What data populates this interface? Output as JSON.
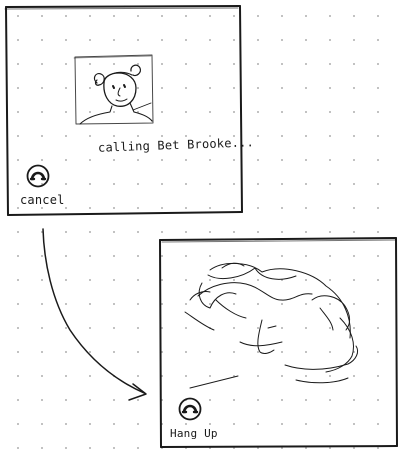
{
  "screen_calling": {
    "status_text": "calling Bet Brooke...",
    "action_label": "cancel",
    "action_icon": "hang-up-icon",
    "avatar_icon": "caller-avatar-sketch"
  },
  "screen_in_call": {
    "action_label": "Hang Up",
    "action_icon": "hang-up-icon",
    "video_icon": "remote-video-face-sketch"
  },
  "flow": {
    "icon": "transition-arrow"
  },
  "colors": {
    "ink": "#1a1a1a",
    "paper": "#ffffff",
    "grid_dot": "#b9b9b9"
  }
}
